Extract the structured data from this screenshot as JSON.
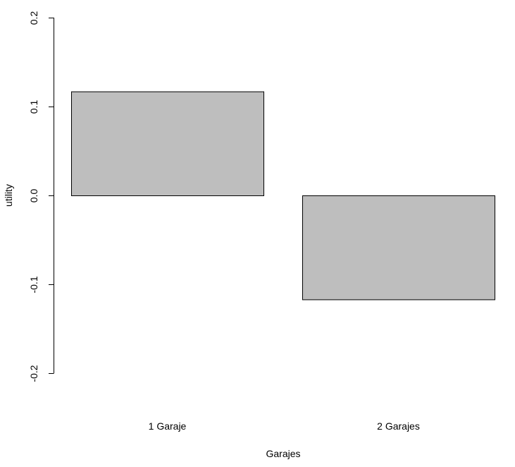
{
  "chart_data": {
    "type": "bar",
    "categories": [
      "1 Garaje",
      "2 Garajes"
    ],
    "values": [
      0.117,
      -0.117
    ],
    "xlabel": "Garajes",
    "ylabel": "utility",
    "ylim": [
      -0.2,
      0.2
    ],
    "yticks": [
      -0.2,
      -0.1,
      0.0,
      0.1,
      0.2
    ],
    "ytick_labels": [
      "-0.2",
      "-0.1",
      "0.0",
      "0.1",
      "0.2"
    ],
    "bar_color": "#bebebe",
    "grid": false,
    "legend": "none"
  }
}
